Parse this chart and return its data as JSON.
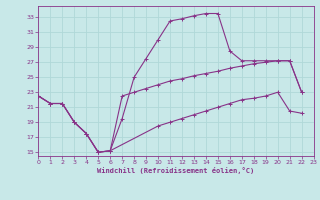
{
  "xlabel": "Windchill (Refroidissement éolien,°C)",
  "background_color": "#c8e8e8",
  "grid_color": "#b0d8d8",
  "line_color": "#883388",
  "tick_color": "#883388",
  "spine_color": "#883388",
  "xlim": [
    0,
    23
  ],
  "ylim": [
    14.5,
    34.5
  ],
  "xticks": [
    0,
    1,
    2,
    3,
    4,
    5,
    6,
    7,
    8,
    9,
    10,
    11,
    12,
    13,
    14,
    15,
    16,
    17,
    18,
    19,
    20,
    21,
    22,
    23
  ],
  "yticks": [
    15,
    17,
    19,
    21,
    23,
    25,
    27,
    29,
    31,
    33
  ],
  "lines": [
    {
      "x": [
        0,
        1,
        2,
        3,
        4,
        5,
        6,
        7,
        8,
        9,
        10,
        11,
        12,
        13,
        14,
        15,
        16,
        17,
        18,
        19,
        20,
        21,
        22
      ],
      "y": [
        22.5,
        21.5,
        21.5,
        19.0,
        17.5,
        15.0,
        15.2,
        19.5,
        25.0,
        27.5,
        30.0,
        32.5,
        32.8,
        33.2,
        33.5,
        33.5,
        28.5,
        27.2,
        27.2,
        27.2,
        27.2,
        27.2,
        23.0
      ]
    },
    {
      "x": [
        0,
        1,
        2,
        3,
        4,
        5,
        6,
        7,
        8,
        9,
        10,
        11,
        12,
        13,
        14,
        15,
        16,
        17,
        18,
        19,
        20,
        21,
        22
      ],
      "y": [
        22.5,
        21.5,
        21.5,
        19.0,
        17.5,
        15.0,
        15.2,
        22.5,
        23.0,
        23.5,
        24.0,
        24.5,
        24.8,
        25.2,
        25.5,
        25.8,
        26.2,
        26.5,
        26.8,
        27.0,
        27.2,
        27.2,
        23.0
      ]
    },
    {
      "x": [
        0,
        1,
        2,
        3,
        4,
        5,
        6,
        10,
        11,
        12,
        13,
        14,
        15,
        16,
        17,
        18,
        19,
        20,
        21,
        22
      ],
      "y": [
        22.5,
        21.5,
        21.5,
        19.0,
        17.5,
        15.0,
        15.2,
        18.5,
        19.0,
        19.5,
        20.0,
        20.5,
        21.0,
        21.5,
        22.0,
        22.2,
        22.5,
        23.0,
        20.5,
        20.2
      ]
    }
  ]
}
